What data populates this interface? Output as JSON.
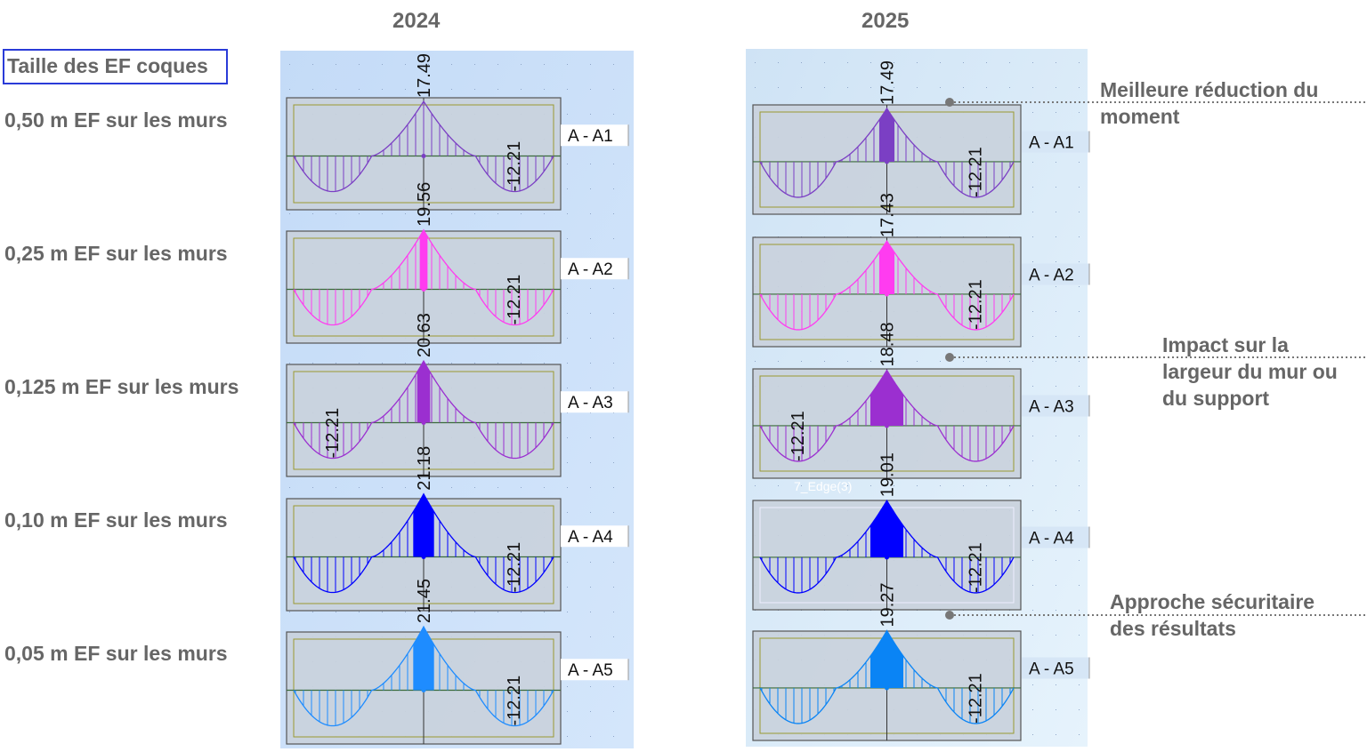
{
  "headers": {
    "left_year": "2024",
    "right_year": "2025"
  },
  "title_box": "Taille des EF coques",
  "rows": [
    {
      "label": "0,50 m EF sur les murs"
    },
    {
      "label": "0,25 m EF sur les murs"
    },
    {
      "label": "0,125 m EF sur les murs"
    },
    {
      "label": "0,10 m EF sur les murs"
    },
    {
      "label": "0,05 m EF sur les murs"
    }
  ],
  "panels": [
    {
      "year": "2024",
      "diagrams": [
        {
          "section": "A - A1",
          "peak": "17.49",
          "sag": "-12.21",
          "sag_side": "right",
          "color": "#7b3fc4",
          "fill_fraction": 0.0
        },
        {
          "section": "A - A2",
          "peak": "19.56",
          "sag": "-12.21",
          "sag_side": "right",
          "color": "#ff3cf0",
          "fill_fraction": 0.03
        },
        {
          "section": "A - A3",
          "peak": "20.63",
          "sag": "-12.21",
          "sag_side": "left",
          "color": "#9b2fd0",
          "fill_fraction": 0.05
        },
        {
          "section": "A - A4",
          "peak": "21.18",
          "sag": "-12.21",
          "sag_side": "right",
          "color": "#0000ff",
          "fill_fraction": 0.08
        },
        {
          "section": "A - A5",
          "peak": "21.45",
          "sag": "-12.21",
          "sag_side": "right",
          "color": "#1e8cff",
          "fill_fraction": 0.08
        }
      ]
    },
    {
      "year": "2025",
      "diagrams": [
        {
          "section": "A - A1",
          "peak": "17.49",
          "sag": "-12.21",
          "sag_side": "right",
          "color": "#7b3fc4",
          "fill_fraction": 0.06
        },
        {
          "section": "A - A2",
          "peak": "17.43",
          "sag": "-12.21",
          "sag_side": "right",
          "color": "#ff3cf0",
          "fill_fraction": 0.06
        },
        {
          "section": "A - A3",
          "peak": "18.48",
          "sag": "-12.21",
          "sag_side": "left",
          "color": "#9b2fd0",
          "fill_fraction": 0.13
        },
        {
          "section": "A - A4",
          "peak": "19.01",
          "sag": "-12.21",
          "sag_side": "right",
          "color": "#0000ff",
          "fill_fraction": 0.13
        },
        {
          "section": "A - A5",
          "peak": "19.27",
          "sag": "-12.21",
          "sag_side": "right",
          "color": "#0a84f5",
          "fill_fraction": 0.13
        }
      ],
      "edge_label": "7_Edge(3)"
    }
  ],
  "annotations": [
    {
      "text_line1": "Meilleure réduction du",
      "text_line2": "moment"
    },
    {
      "text_line1": "Impact sur la",
      "text_line2": "largeur du mur ou",
      "text_line3": "du support"
    },
    {
      "text_line1": "Approche sécuritaire",
      "text_line2": "des résultats"
    }
  ]
}
